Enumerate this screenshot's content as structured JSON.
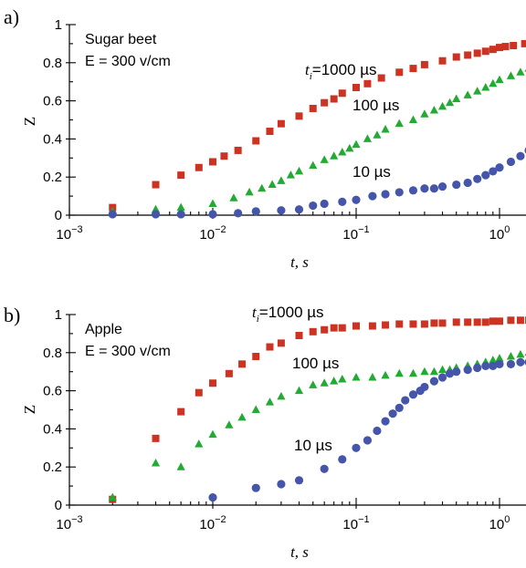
{
  "chart_data": [
    {
      "type": "scatter",
      "panel": "a)",
      "annotation": [
        "Sugar beet",
        "E = 300 v/cm"
      ],
      "xlabel": "t, s",
      "ylabel": "Z",
      "xscale": "log",
      "xlim": [
        0.001,
        2
      ],
      "ylim": [
        0,
        1
      ],
      "xticks": [
        0.001,
        0.01,
        0.1,
        1
      ],
      "xtick_labels": [
        "10−3",
        "10−2",
        "10−1",
        "100"
      ],
      "yticks": [
        0,
        0.2,
        0.4,
        0.6,
        0.8,
        1
      ],
      "ytick_labels": [
        "0",
        "0.2",
        "0.4",
        "0.6",
        "0.8",
        "1"
      ],
      "series": [
        {
          "name": "ti=1000 µs",
          "label_parts": [
            "t",
            "i",
            "=1000 µs"
          ],
          "marker": "square",
          "color": "#cc3322",
          "x": [
            0.002,
            0.004,
            0.006,
            0.008,
            0.01,
            0.012,
            0.015,
            0.02,
            0.025,
            0.03,
            0.04,
            0.05,
            0.06,
            0.07,
            0.08,
            0.1,
            0.12,
            0.15,
            0.2,
            0.25,
            0.3,
            0.4,
            0.5,
            0.6,
            0.7,
            0.8,
            0.9,
            1.0,
            1.1,
            1.25,
            1.5,
            1.75,
            2.0
          ],
          "y": [
            0.04,
            0.16,
            0.21,
            0.25,
            0.28,
            0.31,
            0.34,
            0.39,
            0.44,
            0.48,
            0.52,
            0.56,
            0.59,
            0.61,
            0.64,
            0.67,
            0.69,
            0.72,
            0.75,
            0.77,
            0.79,
            0.81,
            0.83,
            0.84,
            0.85,
            0.86,
            0.87,
            0.88,
            0.885,
            0.89,
            0.9,
            0.91,
            0.92
          ]
        },
        {
          "name": "100 µs",
          "label_parts": [
            "100 µs"
          ],
          "marker": "triangle",
          "color": "#22aa33",
          "x": [
            0.002,
            0.004,
            0.006,
            0.01,
            0.014,
            0.018,
            0.022,
            0.026,
            0.03,
            0.035,
            0.04,
            0.05,
            0.06,
            0.07,
            0.08,
            0.09,
            0.1,
            0.12,
            0.14,
            0.16,
            0.2,
            0.25,
            0.3,
            0.35,
            0.4,
            0.45,
            0.5,
            0.6,
            0.7,
            0.8,
            0.9,
            1.0,
            1.2,
            1.4,
            1.6,
            1.8,
            2.0
          ],
          "y": [
            0.02,
            0.03,
            0.04,
            0.06,
            0.09,
            0.12,
            0.14,
            0.16,
            0.18,
            0.21,
            0.23,
            0.26,
            0.29,
            0.31,
            0.33,
            0.35,
            0.37,
            0.4,
            0.42,
            0.45,
            0.48,
            0.5,
            0.53,
            0.55,
            0.57,
            0.59,
            0.61,
            0.63,
            0.65,
            0.67,
            0.69,
            0.71,
            0.73,
            0.75,
            0.77,
            0.79,
            0.81
          ]
        },
        {
          "name": "10 µs",
          "label_parts": [
            "10 µs"
          ],
          "marker": "circle",
          "color": "#4455aa",
          "x": [
            0.002,
            0.004,
            0.006,
            0.01,
            0.015,
            0.02,
            0.03,
            0.04,
            0.05,
            0.06,
            0.08,
            0.1,
            0.13,
            0.16,
            0.2,
            0.25,
            0.3,
            0.35,
            0.4,
            0.5,
            0.6,
            0.7,
            0.8,
            0.9,
            1.0,
            1.2,
            1.4,
            1.6,
            1.8,
            2.0
          ],
          "y": [
            0.005,
            0.005,
            0.005,
            0.005,
            0.01,
            0.02,
            0.025,
            0.03,
            0.05,
            0.06,
            0.07,
            0.08,
            0.1,
            0.11,
            0.12,
            0.13,
            0.14,
            0.14,
            0.15,
            0.16,
            0.17,
            0.19,
            0.21,
            0.23,
            0.25,
            0.28,
            0.31,
            0.34,
            0.38,
            0.42
          ]
        }
      ]
    },
    {
      "type": "scatter",
      "panel": "b)",
      "annotation": [
        "Apple",
        "E = 300 v/cm"
      ],
      "xlabel": "t, s",
      "ylabel": "Z",
      "xscale": "log",
      "xlim": [
        0.001,
        2
      ],
      "ylim": [
        0,
        1
      ],
      "xticks": [
        0.001,
        0.01,
        0.1,
        1
      ],
      "xtick_labels": [
        "10−3",
        "10−2",
        "10−1",
        "100"
      ],
      "yticks": [
        0,
        0.2,
        0.4,
        0.6,
        0.8,
        1
      ],
      "ytick_labels": [
        "0",
        "0.2",
        "0.4",
        "0.6",
        "0.8",
        "1"
      ],
      "series": [
        {
          "name": "ti=1000 µs",
          "label_parts": [
            "t",
            "i",
            "=1000 µs"
          ],
          "marker": "square",
          "color": "#cc3322",
          "x": [
            0.002,
            0.004,
            0.006,
            0.008,
            0.01,
            0.013,
            0.016,
            0.02,
            0.025,
            0.03,
            0.04,
            0.05,
            0.06,
            0.07,
            0.08,
            0.1,
            0.13,
            0.16,
            0.2,
            0.25,
            0.3,
            0.35,
            0.4,
            0.5,
            0.6,
            0.7,
            0.8,
            0.9,
            1.0,
            1.2,
            1.4,
            1.6,
            1.8,
            2.0
          ],
          "y": [
            0.03,
            0.35,
            0.49,
            0.59,
            0.64,
            0.69,
            0.74,
            0.78,
            0.83,
            0.85,
            0.89,
            0.91,
            0.92,
            0.93,
            0.93,
            0.94,
            0.94,
            0.945,
            0.95,
            0.95,
            0.95,
            0.955,
            0.955,
            0.96,
            0.96,
            0.96,
            0.96,
            0.965,
            0.965,
            0.97,
            0.97,
            0.97,
            0.975,
            0.975
          ]
        },
        {
          "name": "100 µs",
          "label_parts": [
            "100 µs"
          ],
          "marker": "triangle",
          "color": "#22aa33",
          "x": [
            0.002,
            0.004,
            0.006,
            0.008,
            0.01,
            0.013,
            0.016,
            0.02,
            0.025,
            0.03,
            0.04,
            0.05,
            0.06,
            0.07,
            0.08,
            0.1,
            0.13,
            0.16,
            0.2,
            0.25,
            0.3,
            0.35,
            0.4,
            0.45,
            0.5,
            0.6,
            0.7,
            0.8,
            0.9,
            1.0,
            1.2,
            1.4,
            1.6,
            1.8,
            2.0
          ],
          "y": [
            0.04,
            0.22,
            0.2,
            0.32,
            0.37,
            0.42,
            0.46,
            0.5,
            0.54,
            0.57,
            0.6,
            0.63,
            0.64,
            0.65,
            0.66,
            0.67,
            0.67,
            0.68,
            0.69,
            0.69,
            0.7,
            0.7,
            0.71,
            0.71,
            0.72,
            0.73,
            0.74,
            0.75,
            0.76,
            0.77,
            0.78,
            0.79,
            0.8,
            0.8,
            0.81
          ]
        },
        {
          "name": "10 µs",
          "label_parts": [
            "10 µs"
          ],
          "marker": "circle",
          "color": "#4455aa",
          "x": [
            0.01,
            0.02,
            0.03,
            0.04,
            0.06,
            0.08,
            0.1,
            0.12,
            0.14,
            0.16,
            0.18,
            0.2,
            0.22,
            0.25,
            0.28,
            0.3,
            0.35,
            0.4,
            0.45,
            0.5,
            0.6,
            0.7,
            0.8,
            0.9,
            1.0,
            1.2,
            1.4,
            1.6,
            1.8,
            2.0
          ],
          "y": [
            0.04,
            0.09,
            0.11,
            0.13,
            0.19,
            0.24,
            0.3,
            0.34,
            0.39,
            0.44,
            0.48,
            0.51,
            0.55,
            0.58,
            0.6,
            0.62,
            0.65,
            0.67,
            0.69,
            0.7,
            0.71,
            0.72,
            0.73,
            0.73,
            0.74,
            0.74,
            0.75,
            0.75,
            0.75,
            0.75
          ]
        }
      ]
    }
  ]
}
